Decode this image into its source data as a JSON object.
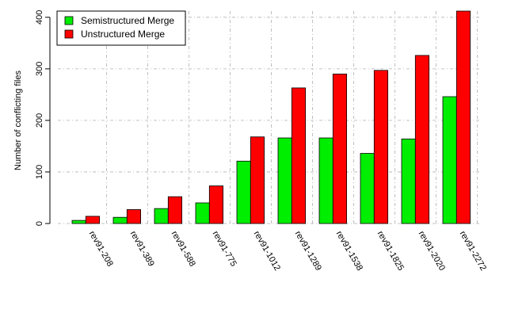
{
  "chart_data": {
    "type": "bar",
    "categories": [
      "rev91-208",
      "rev91-389",
      "rev91-588",
      "rev91-775",
      "rev91-1012",
      "rev91-1289",
      "rev91-1538",
      "rev91-1825",
      "rev91-2020",
      "rev91-2272"
    ],
    "series": [
      {
        "name": "Semistructured Merge",
        "color": "#00ee00",
        "values": [
          6,
          12,
          29,
          40,
          121,
          166,
          166,
          136,
          164,
          246
        ]
      },
      {
        "name": "Unstructured Merge",
        "color": "#ff0000",
        "values": [
          14,
          27,
          52,
          73,
          168,
          263,
          290,
          297,
          326,
          412
        ]
      }
    ],
    "title": "",
    "xlabel": "",
    "ylabel": "Number of conflicting files",
    "ylim": [
      0,
      412
    ],
    "yticks": [
      0,
      100,
      200,
      300,
      400
    ],
    "grid": true,
    "legend_position": "top-left"
  }
}
